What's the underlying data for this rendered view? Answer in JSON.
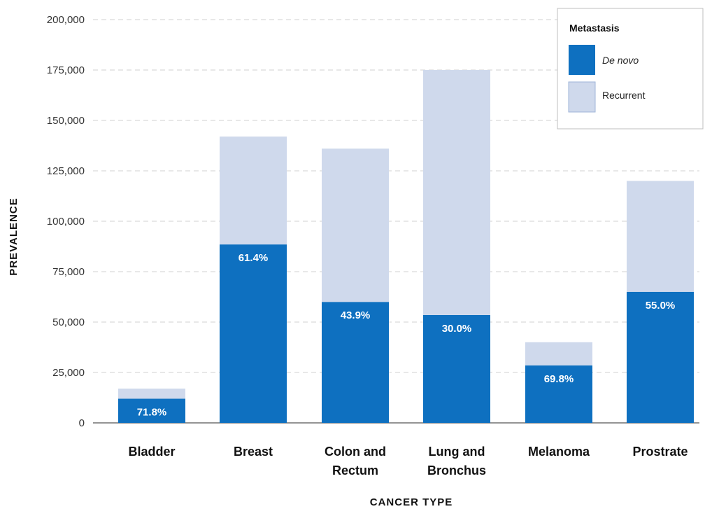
{
  "chart_data": {
    "type": "bar",
    "stacked": true,
    "categories": [
      "Bladder",
      "Breast",
      "Colon and\nRectum",
      "Lung and\nBronchus",
      "Melanoma",
      "Prostrate"
    ],
    "series": [
      {
        "name": "De novo",
        "values": [
          12000,
          88500,
          60000,
          53500,
          28500,
          65000
        ],
        "color": "#0e70c0",
        "italic": true
      },
      {
        "name": "Recurrent",
        "values": [
          5000,
          53500,
          76000,
          121500,
          11500,
          55000
        ],
        "color": "#cfd9ec"
      }
    ],
    "bar_labels": [
      "71.8%",
      "61.4%",
      "43.9%",
      "30.0%",
      "69.8%",
      "55.0%"
    ],
    "xlabel": "CANCER TYPE",
    "ylabel": "PREVALENCE",
    "ylim": [
      0,
      200000
    ],
    "yticks": [
      0,
      25000,
      50000,
      75000,
      100000,
      125000,
      150000,
      175000,
      200000
    ],
    "ytick_labels": [
      "0",
      "25,000",
      "50,000",
      "75,000",
      "100,000",
      "125,000",
      "150,000",
      "175,000",
      "200,000"
    ],
    "grid": true,
    "legend": {
      "title": "Metastasis",
      "position": "top-right"
    }
  }
}
